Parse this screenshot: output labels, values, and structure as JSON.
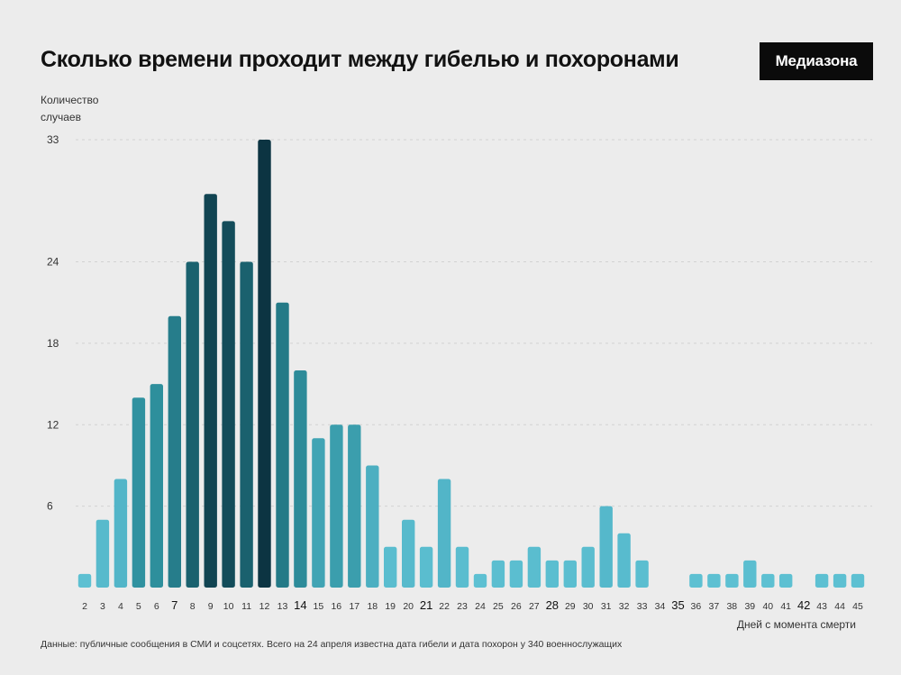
{
  "header": {
    "title": "Сколько времени проходит между гибелью и похоронами",
    "logo": "Медиазона"
  },
  "footer": {
    "source": "Данные: публичные сообщения в СМИ и соцсетях. Всего на 24 апреля известна дата гибели и дата похорон у 340 военнослужащих"
  },
  "chart_data": {
    "type": "bar",
    "title": "Сколько времени проходит между гибелью и похоронами",
    "xlabel": "Дней с момента смерти",
    "ylabel": "Количество случаев",
    "ylim": [
      0,
      33
    ],
    "yticks": [
      6,
      12,
      18,
      24,
      33
    ],
    "grid": true,
    "categories": [
      "2",
      "3",
      "4",
      "5",
      "6",
      "7",
      "8",
      "9",
      "10",
      "11",
      "12",
      "13",
      "14",
      "15",
      "16",
      "17",
      "18",
      "19",
      "20",
      "21",
      "22",
      "23",
      "24",
      "25",
      "26",
      "27",
      "28",
      "29",
      "30",
      "31",
      "32",
      "33",
      "34",
      "35",
      "36",
      "37",
      "38",
      "39",
      "40",
      "41",
      "42",
      "43",
      "44",
      "45"
    ],
    "major_ticks": [
      "7",
      "14",
      "21",
      "28",
      "35",
      "42"
    ],
    "values": [
      1,
      5,
      8,
      14,
      15,
      20,
      24,
      29,
      27,
      24,
      33,
      21,
      16,
      11,
      12,
      12,
      9,
      3,
      5,
      3,
      8,
      3,
      1,
      2,
      2,
      3,
      2,
      2,
      3,
      6,
      4,
      2,
      0,
      0,
      1,
      1,
      1,
      2,
      1,
      1,
      0,
      1,
      1,
      1
    ],
    "colors": {
      "light": "#5bbfd2",
      "mid": "#2a8a99",
      "dark": "#0f3d4d",
      "darkest": "#0c3140"
    }
  }
}
